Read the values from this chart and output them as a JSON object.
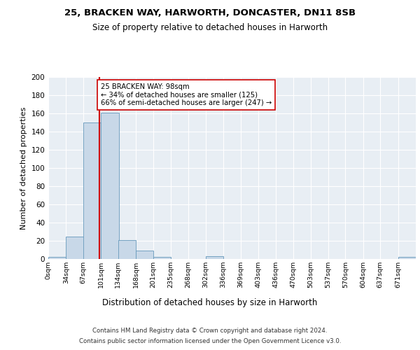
{
  "title1": "25, BRACKEN WAY, HARWORTH, DONCASTER, DN11 8SB",
  "title2": "Size of property relative to detached houses in Harworth",
  "xlabel": "Distribution of detached houses by size in Harworth",
  "ylabel": "Number of detached properties",
  "bin_labels": [
    "0sqm",
    "34sqm",
    "67sqm",
    "101sqm",
    "134sqm",
    "168sqm",
    "201sqm",
    "235sqm",
    "268sqm",
    "302sqm",
    "336sqm",
    "369sqm",
    "403sqm",
    "436sqm",
    "470sqm",
    "503sqm",
    "537sqm",
    "570sqm",
    "604sqm",
    "637sqm",
    "671sqm"
  ],
  "bar_heights": [
    2,
    25,
    150,
    161,
    21,
    9,
    2,
    0,
    0,
    3,
    0,
    0,
    0,
    0,
    0,
    0,
    0,
    0,
    0,
    0,
    2
  ],
  "bin_edges": [
    0,
    34,
    67,
    101,
    134,
    168,
    201,
    235,
    268,
    302,
    336,
    369,
    403,
    436,
    470,
    503,
    537,
    570,
    604,
    637,
    671
  ],
  "bar_color": "#c8d8e8",
  "bar_edge_color": "#6699bb",
  "vline_color": "#cc0000",
  "vline_x": 98,
  "annotation_text": "25 BRACKEN WAY: 98sqm\n← 34% of detached houses are smaller (125)\n66% of semi-detached houses are larger (247) →",
  "annotation_box_color": "#ffffff",
  "annotation_box_edge": "#cc0000",
  "ylim": [
    0,
    200
  ],
  "yticks": [
    0,
    20,
    40,
    60,
    80,
    100,
    120,
    140,
    160,
    180,
    200
  ],
  "bg_color": "#e8eef4",
  "footer1": "Contains HM Land Registry data © Crown copyright and database right 2024.",
  "footer2": "Contains public sector information licensed under the Open Government Licence v3.0."
}
